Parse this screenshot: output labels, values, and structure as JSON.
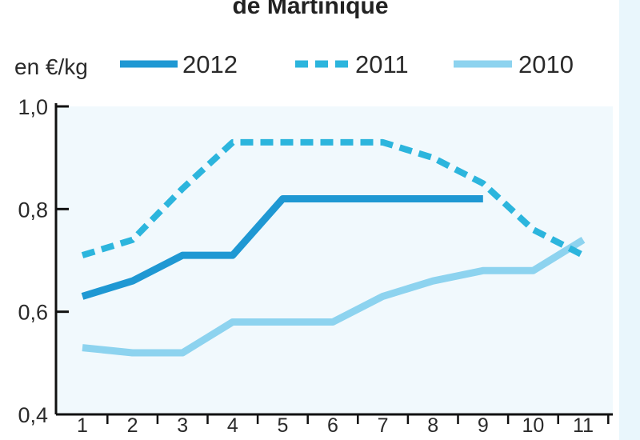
{
  "chart_data": {
    "type": "line",
    "title": "de Martinique",
    "unit_label": "en €/kg",
    "x": [
      1,
      2,
      3,
      4,
      5,
      6,
      7,
      8,
      9,
      10,
      11
    ],
    "xticks": [
      "1",
      "2",
      "3",
      "4",
      "5",
      "6",
      "7",
      "8",
      "9",
      "10",
      "11"
    ],
    "yticks": [
      "0,4",
      "0,6",
      "0,8",
      "1,0"
    ],
    "ylim": [
      0.4,
      1.0
    ],
    "xlim": [
      0.5,
      11.5
    ],
    "legend_position": "top",
    "grid": false,
    "series": [
      {
        "name": "2012",
        "style": "solid",
        "color": "#1f98d3",
        "points": [
          [
            1,
            0.63
          ],
          [
            2,
            0.66
          ],
          [
            3,
            0.71
          ],
          [
            4,
            0.71
          ],
          [
            5,
            0.82
          ],
          [
            6,
            0.82
          ],
          [
            7,
            0.82
          ],
          [
            8,
            0.82
          ],
          [
            9,
            0.82
          ]
        ]
      },
      {
        "name": "2011",
        "style": "dashed",
        "color": "#2cb5dd",
        "points": [
          [
            1,
            0.71
          ],
          [
            2,
            0.74
          ],
          [
            3,
            0.84
          ],
          [
            4,
            0.93
          ],
          [
            5,
            0.93
          ],
          [
            6,
            0.93
          ],
          [
            7,
            0.93
          ],
          [
            8,
            0.9
          ],
          [
            9,
            0.85
          ],
          [
            10,
            0.76
          ],
          [
            11,
            0.71
          ]
        ]
      },
      {
        "name": "2010",
        "style": "solid",
        "color": "#8dd3ef",
        "points": [
          [
            1,
            0.53
          ],
          [
            2,
            0.52
          ],
          [
            3,
            0.52
          ],
          [
            4,
            0.58
          ],
          [
            5,
            0.58
          ],
          [
            6,
            0.58
          ],
          [
            7,
            0.63
          ],
          [
            8,
            0.66
          ],
          [
            9,
            0.68
          ],
          [
            10,
            0.68
          ],
          [
            11,
            0.74
          ]
        ]
      }
    ]
  },
  "colors": {
    "plot_background": "#f1f9fd",
    "side_panel": "#e9f6fc",
    "axis": "#111111"
  }
}
